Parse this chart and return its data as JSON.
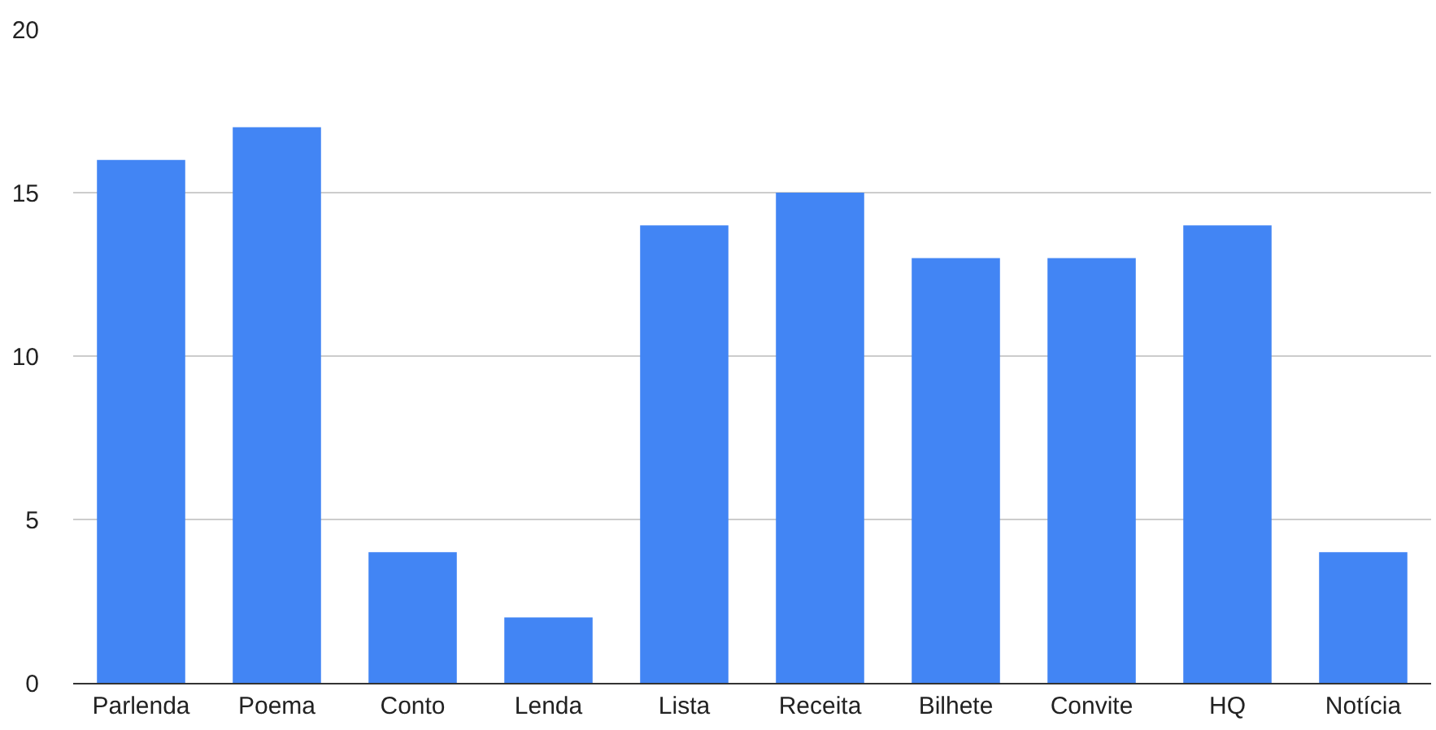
{
  "chart_data": {
    "type": "bar",
    "categories": [
      "Parlenda",
      "Poema",
      "Conto",
      "Lenda",
      "Lista",
      "Receita",
      "Bilhete",
      "Convite",
      "HQ",
      "Notícia"
    ],
    "values": [
      16,
      17,
      4,
      2,
      14,
      15,
      13,
      13,
      14,
      4
    ],
    "color": "#4285f4",
    "ylim": [
      0,
      20
    ],
    "yticks": [
      0,
      5,
      10,
      15,
      20
    ],
    "grid": "y",
    "legend": false
  }
}
